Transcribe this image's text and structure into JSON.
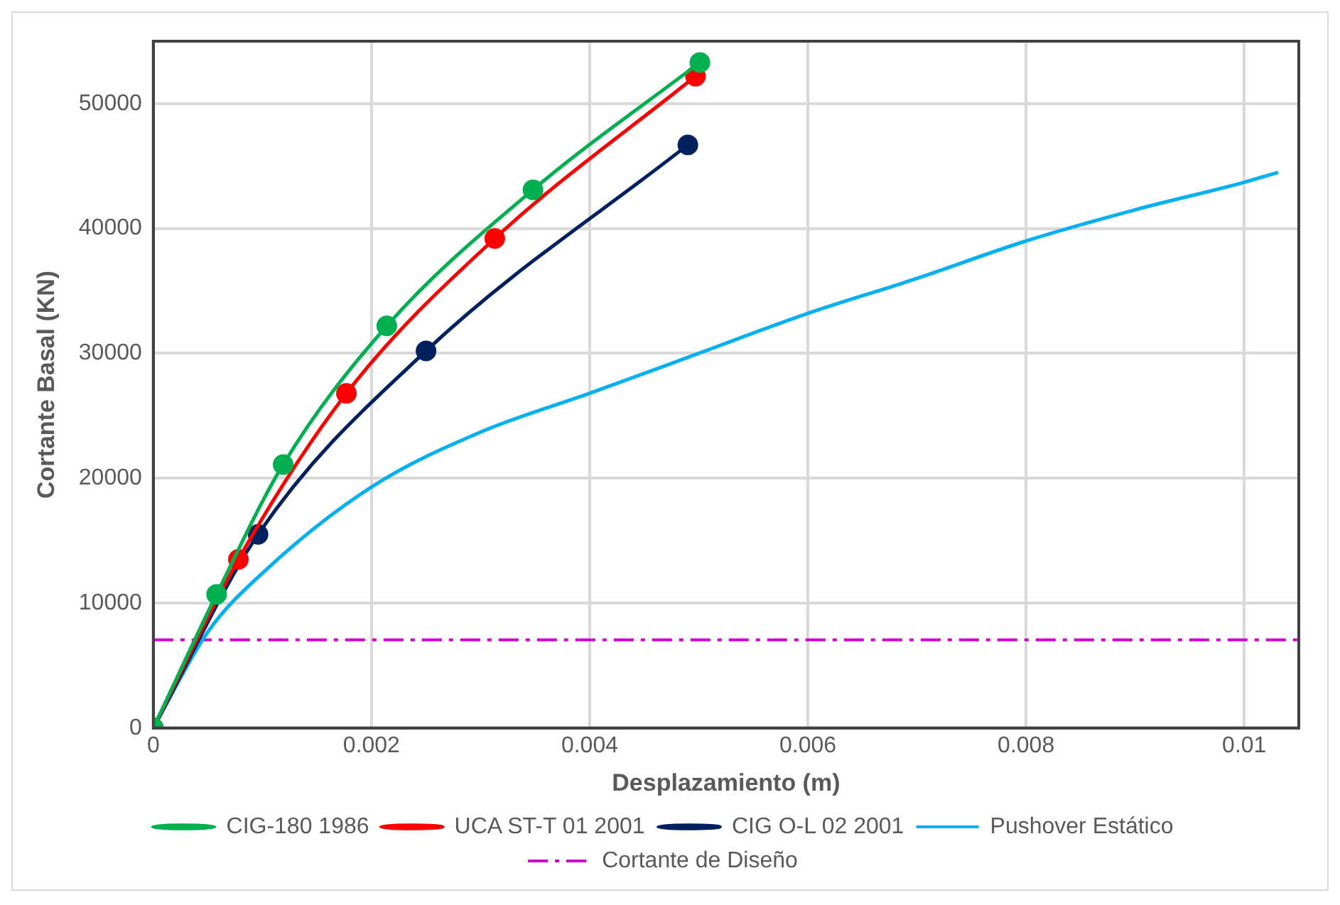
{
  "chart_data": {
    "type": "line",
    "xlabel": "Desplazamiento (m)",
    "ylabel": "Cortante Basal (KN)",
    "xlim": [
      0,
      0.0105
    ],
    "xticks": [
      0,
      0.002,
      0.004,
      0.006,
      0.008,
      0.01
    ],
    "ylim": [
      0,
      55000
    ],
    "yticks": [
      0,
      10000,
      20000,
      30000,
      40000,
      50000
    ],
    "grid": true,
    "legend": "bottom",
    "series": [
      {
        "name": "CIG-180 1986",
        "color": "#00b050",
        "marker": "circle",
        "x": [
          0,
          0.00058,
          0.00119,
          0.00214,
          0.00348,
          0.00501
        ],
        "values": [
          0,
          10700,
          21100,
          32200,
          43100,
          53300
        ]
      },
      {
        "name": "UCA ST-T 01 2001",
        "color": "#ff0000",
        "marker": "circle",
        "x": [
          0,
          0.00078,
          0.00177,
          0.00313,
          0.00497
        ],
        "values": [
          0,
          13500,
          26800,
          39200,
          52200
        ]
      },
      {
        "name": "CIG O-L 02 2001",
        "color": "#002060",
        "marker": "circle",
        "x": [
          0,
          0.00096,
          0.0025,
          0.0049
        ],
        "values": [
          0,
          15500,
          30200,
          46700
        ]
      },
      {
        "name": "Pushover Estático",
        "color": "#00b0f0",
        "marker": "none",
        "x": [
          0,
          0.0005,
          0.001,
          0.002,
          0.003,
          0.004,
          0.005,
          0.006,
          0.007,
          0.008,
          0.009,
          0.01,
          0.01031
        ],
        "values": [
          0,
          7700,
          12400,
          19300,
          23700,
          26800,
          30000,
          33200,
          36000,
          39000,
          41500,
          43700,
          44500
        ]
      }
    ],
    "ref_lines": [
      {
        "axis": "y",
        "value": 7050,
        "label": "Cortante de Diseño",
        "color": "#cc00cc",
        "line_style": "dashed"
      }
    ]
  }
}
